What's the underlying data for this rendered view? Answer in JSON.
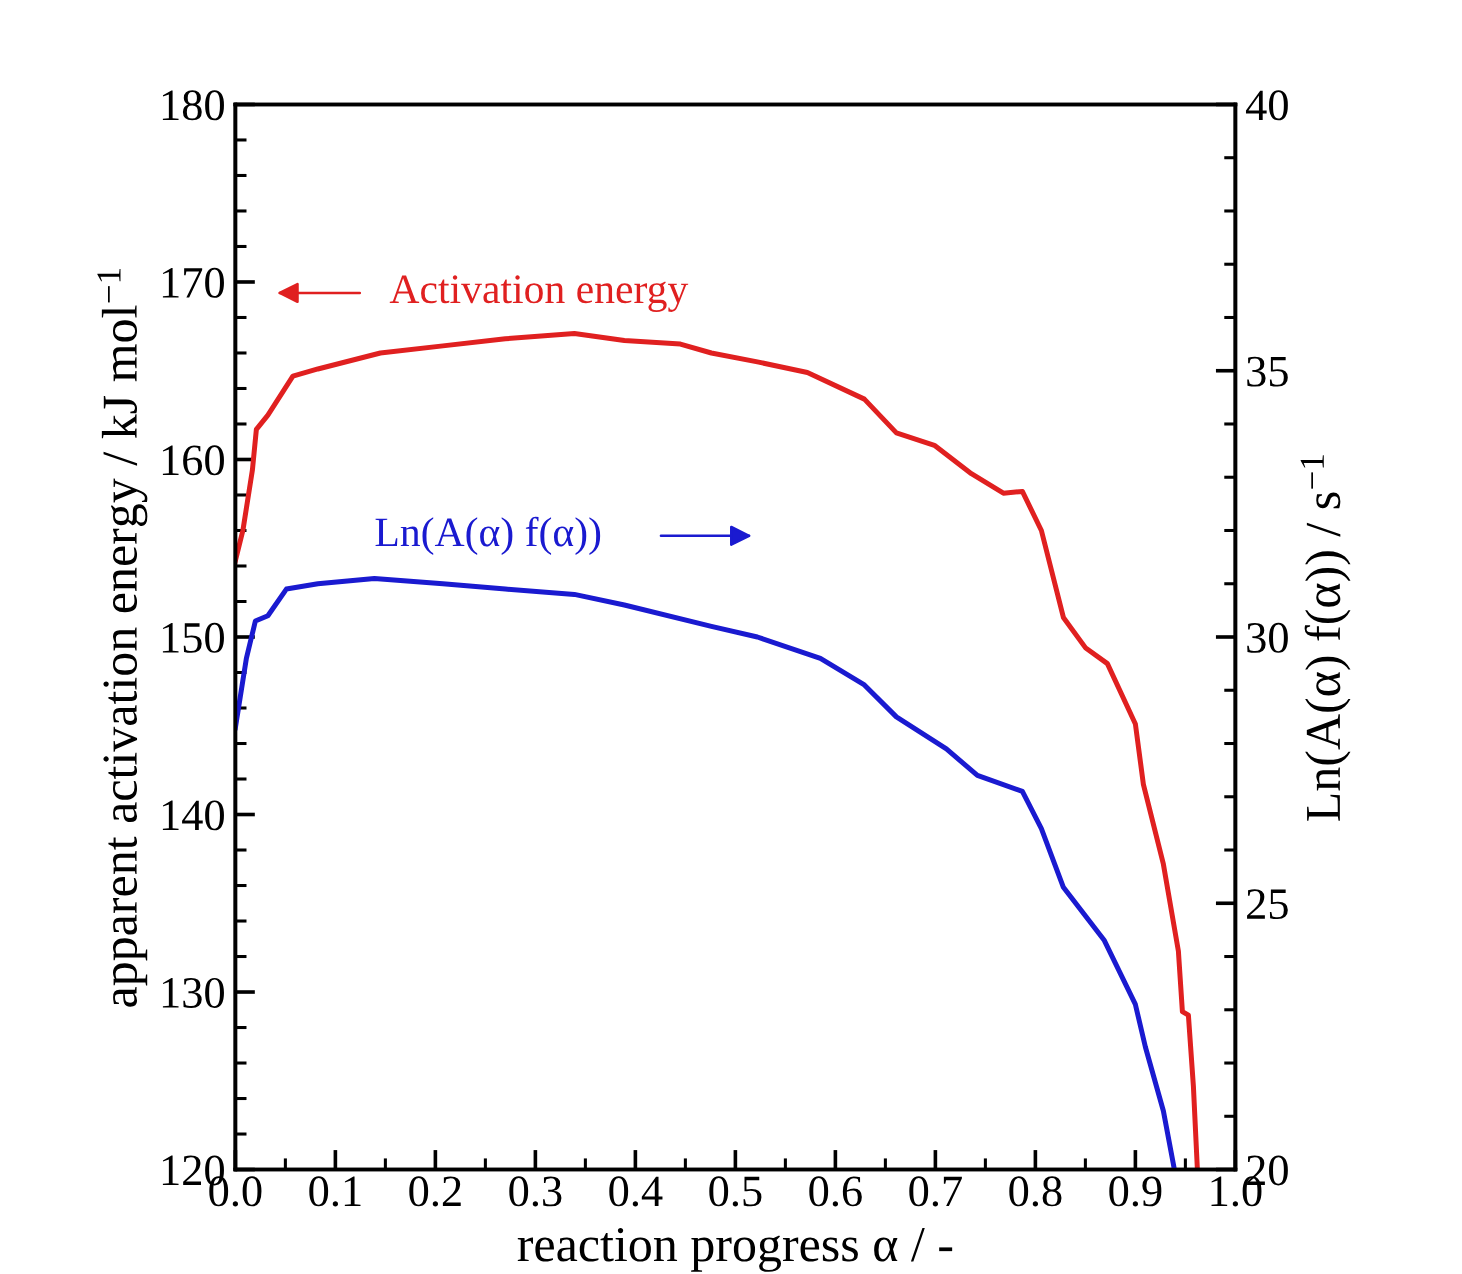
{
  "chart_data": {
    "type": "line",
    "xlabel": "reaction progress α / -",
    "ylabel": "apparent activation energy / kJ mol$^{−1}$",
    "y2label": "Ln(A(α) f(α)) / s$^{−1}$",
    "xlim": [
      0,
      1
    ],
    "xticks": [
      {
        "value": 0,
        "label": "0.0"
      },
      0.1,
      0.2,
      0.3,
      0.4,
      0.5,
      0.6,
      0.7,
      0.8,
      0.9,
      {
        "value": 1,
        "label": "1.0"
      }
    ],
    "ylim": [
      120,
      180
    ],
    "yticks": [
      120,
      130,
      140,
      150,
      160,
      170,
      180
    ],
    "y2lim": [
      20,
      40
    ],
    "y2ticks": [
      20,
      25,
      30,
      35,
      40
    ],
    "grid": false,
    "legend": "top left",
    "marker": "none",
    "line_style": "solid",
    "series": [
      {
        "name": "Activation energy",
        "color": "#e02020",
        "x": [
          0,
          0.0075,
          0.017,
          0.021,
          0.0325,
          0.0575,
          0.0825,
          0.145,
          0.2075,
          0.27,
          0.339,
          0.389,
          0.445,
          0.476,
          0.522,
          0.572,
          0.629,
          0.661,
          0.699,
          0.736,
          0.768,
          0.787,
          0.806,
          0.828,
          0.85,
          0.872,
          0.9,
          0.908,
          0.928,
          0.943,
          0.947,
          0.953,
          0.958,
          0.962
        ],
        "values": [
          154.3,
          156.0,
          159.4,
          161.7,
          162.5,
          164.7,
          165.1,
          166.0,
          166.4,
          166.8,
          167.1,
          166.7,
          166.5,
          166.0,
          165.5,
          164.9,
          163.4,
          161.5,
          160.8,
          159.2,
          158.1,
          158.2,
          156.0,
          151.1,
          149.4,
          148.5,
          145.1,
          141.7,
          137.2,
          132.3,
          128.9,
          128.7,
          124.7,
          120.0
        ]
      },
      {
        "name": "Ln(A(α) f(α))",
        "color": "#1a1ad0",
        "axis": "y2",
        "x": [
          0,
          0.011,
          0.02,
          0.0325,
          0.051,
          0.0825,
          0.139,
          0.2075,
          0.27,
          0.339,
          0.389,
          0.476,
          0.522,
          0.585,
          0.629,
          0.661,
          0.711,
          0.742,
          0.787,
          0.806,
          0.828,
          0.869,
          0.9,
          0.91,
          0.928,
          0.939
        ],
        "values": [
          28.3,
          29.6,
          30.3,
          30.4,
          30.9,
          31.0,
          31.1,
          31.0,
          30.9,
          30.8,
          30.6,
          30.2,
          30.0,
          29.6,
          29.1,
          28.5,
          27.9,
          27.4,
          27.1,
          26.4,
          25.3,
          24.3,
          23.1,
          22.3,
          21.1,
          20.0
        ]
      }
    ]
  }
}
